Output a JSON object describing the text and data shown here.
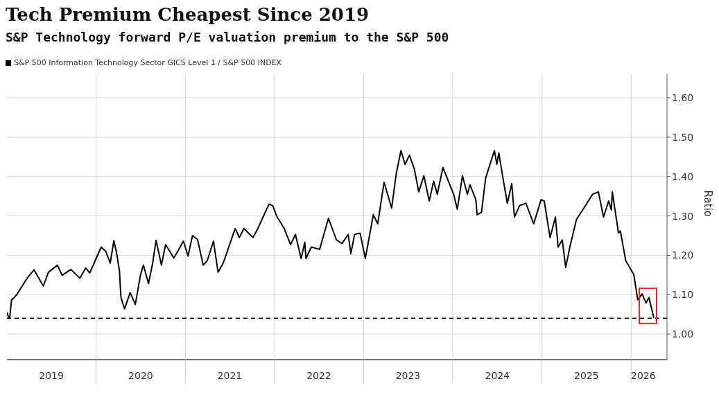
{
  "chart_data": {
    "type": "line",
    "title": "Tech Premium Cheapest Since 2019",
    "subtitle": "S&P Technology forward P/E valuation premium to the S&P 500",
    "ylabel": "Ratio",
    "legend": "top left",
    "grid": true,
    "marker": "none",
    "line_style": "solid",
    "xlim": [
      "2019-01-01",
      "2026-05-28"
    ],
    "xticks": [
      {
        "value": "2019-07-02",
        "label": "2019"
      },
      {
        "value": "2020-01-01",
        "label": null
      },
      {
        "value": "2020-07-02",
        "label": "2020"
      },
      {
        "value": "2021-01-01",
        "label": null
      },
      {
        "value": "2021-07-02",
        "label": "2021"
      },
      {
        "value": "2022-01-01",
        "label": null
      },
      {
        "value": "2022-07-02",
        "label": "2022"
      },
      {
        "value": "2023-01-01",
        "label": null
      },
      {
        "value": "2023-07-02",
        "label": "2023"
      },
      {
        "value": "2024-01-01",
        "label": null
      },
      {
        "value": "2024-07-02",
        "label": "2024"
      },
      {
        "value": "2025-01-01",
        "label": null
      },
      {
        "value": "2025-07-02",
        "label": "2025"
      },
      {
        "value": "2026-01-01",
        "label": null
      },
      {
        "value": "2026-02-20",
        "label": "2026"
      }
    ],
    "ylim": [
      0.935,
      1.66
    ],
    "yticks": [
      {
        "value": 1,
        "label": "1.00"
      },
      {
        "value": 1.1,
        "label": "1.10"
      },
      {
        "value": 1.2,
        "label": "1.20"
      },
      {
        "value": 1.3,
        "label": "1.30"
      },
      {
        "value": 1.4,
        "label": "1.40"
      },
      {
        "value": 1.5,
        "label": "1.50"
      },
      {
        "value": 1.6,
        "label": "1.60"
      }
    ],
    "ref_lines": [
      {
        "axis": "y",
        "value": 1.04,
        "color": "#000000",
        "line_style": "dashed"
      }
    ],
    "x": [
      "2019-01-01",
      "2019-01-06",
      "2019-01-12",
      "2019-01-20",
      "2019-01-31",
      "2019-02-10",
      "2019-03-25",
      "2019-04-22",
      "2019-05-30",
      "2019-06-20",
      "2019-07-27",
      "2019-08-15",
      "2019-09-20",
      "2019-10-27",
      "2019-11-20",
      "2019-12-06",
      "2020-01-22",
      "2020-02-10",
      "2020-02-28",
      "2020-03-14",
      "2020-03-25",
      "2020-04-06",
      "2020-04-12",
      "2020-04-27",
      "2020-05-20",
      "2020-06-10",
      "2020-07-01",
      "2020-07-13",
      "2020-08-03",
      "2020-08-20",
      "2020-09-03",
      "2020-09-25",
      "2020-10-12",
      "2020-11-15",
      "2020-12-24",
      "2021-01-12",
      "2021-01-30",
      "2021-02-20",
      "2021-03-15",
      "2021-04-01",
      "2021-04-26",
      "2021-05-15",
      "2021-06-05",
      "2021-07-01",
      "2021-07-24",
      "2021-08-10",
      "2021-08-29",
      "2021-10-05",
      "2021-10-25",
      "2021-12-02",
      "2021-12-10",
      "2021-12-25",
      "2022-01-12",
      "2022-02-10",
      "2022-03-08",
      "2022-03-28",
      "2022-04-20",
      "2022-05-05",
      "2022-05-10",
      "2022-06-01",
      "2022-07-05",
      "2022-08-10",
      "2022-09-12",
      "2022-10-05",
      "2022-10-30",
      "2022-11-10",
      "2022-11-25",
      "2022-12-18",
      "2023-01-08",
      "2023-02-10",
      "2023-02-28",
      "2023-03-26",
      "2023-04-26",
      "2023-05-15",
      "2023-06-03",
      "2023-06-20",
      "2023-07-08",
      "2023-07-28",
      "2023-08-15",
      "2023-09-05",
      "2023-09-27",
      "2023-10-15",
      "2023-10-30",
      "2023-11-22",
      "2024-01-05",
      "2024-01-20",
      "2024-02-10",
      "2024-03-01",
      "2024-03-12",
      "2024-04-05",
      "2024-04-10",
      "2024-04-28",
      "2024-05-15",
      "2024-06-20",
      "2024-06-30",
      "2024-07-08",
      "2024-07-25",
      "2024-08-12",
      "2024-08-30",
      "2024-09-10",
      "2024-10-01",
      "2024-10-27",
      "2024-11-28",
      "2024-12-28",
      "2025-01-10",
      "2025-02-03",
      "2025-02-25",
      "2025-03-08",
      "2025-03-25",
      "2025-04-08",
      "2025-04-25",
      "2025-05-22",
      "2025-06-28",
      "2025-07-27",
      "2025-08-20",
      "2025-09-10",
      "2025-10-01",
      "2025-10-12",
      "2025-10-16",
      "2025-11-10",
      "2025-11-18",
      "2025-12-10",
      "2026-01-12",
      "2026-01-28",
      "2026-02-15",
      "2026-03-03",
      "2026-03-15",
      "2026-04-04"
    ],
    "series": [
      {
        "name": "S&P 500 Information Technology Sector GICS Level 1 / S&P 500 INDEX",
        "color": "#000000",
        "values": [
          1.055,
          1.046,
          1.04,
          1.087,
          1.093,
          1.1,
          1.142,
          1.163,
          1.122,
          1.157,
          1.175,
          1.149,
          1.164,
          1.142,
          1.168,
          1.155,
          1.221,
          1.21,
          1.18,
          1.237,
          1.207,
          1.16,
          1.093,
          1.064,
          1.105,
          1.075,
          1.15,
          1.175,
          1.128,
          1.18,
          1.238,
          1.175,
          1.227,
          1.193,
          1.236,
          1.198,
          1.25,
          1.24,
          1.175,
          1.187,
          1.236,
          1.157,
          1.18,
          1.227,
          1.268,
          1.245,
          1.268,
          1.245,
          1.268,
          1.32,
          1.33,
          1.326,
          1.297,
          1.268,
          1.227,
          1.253,
          1.192,
          1.233,
          1.192,
          1.221,
          1.215,
          1.294,
          1.239,
          1.23,
          1.253,
          1.204,
          1.253,
          1.256,
          1.192,
          1.303,
          1.28,
          1.385,
          1.32,
          1.408,
          1.466,
          1.431,
          1.454,
          1.419,
          1.361,
          1.402,
          1.338,
          1.388,
          1.355,
          1.423,
          1.355,
          1.317,
          1.402,
          1.355,
          1.379,
          1.341,
          1.303,
          1.309,
          1.396,
          1.466,
          1.431,
          1.46,
          1.396,
          1.332,
          1.382,
          1.297,
          1.326,
          1.332,
          1.28,
          1.341,
          1.338,
          1.245,
          1.297,
          1.221,
          1.239,
          1.169,
          1.221,
          1.291,
          1.326,
          1.355,
          1.361,
          1.297,
          1.338,
          1.315,
          1.361,
          1.257,
          1.262,
          1.186,
          1.151,
          1.087,
          1.102,
          1.079,
          1.093,
          1.041
        ]
      }
    ]
  }
}
